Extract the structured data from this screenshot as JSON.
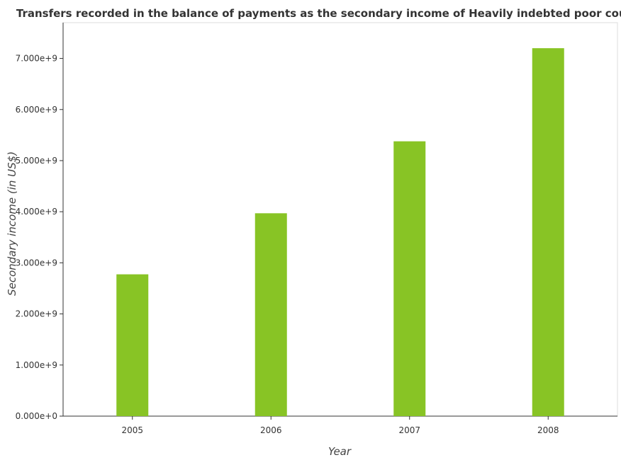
{
  "chart_data": {
    "type": "bar",
    "title": "Transfers recorded in the balance of payments as the secondary income of Heavily indebted poor countries",
    "xlabel": "Year",
    "ylabel": "Secondary income (in US$)",
    "categories": [
      "2005",
      "2006",
      "2007",
      "2008"
    ],
    "series": [
      {
        "values": [
          2775000000,
          3970000000,
          5378000000,
          7200000000
        ]
      }
    ],
    "ylim": [
      0,
      7700000000
    ],
    "yticks": [
      0,
      1000000000,
      2000000000,
      3000000000,
      4000000000,
      5000000000,
      6000000000,
      7000000000
    ],
    "ytick_labels": [
      "0.000e+0",
      "1.000e+9",
      "2.000e+9",
      "3.000e+9",
      "4.000e+9",
      "5.000e+9",
      "6.000e+9",
      "7.000e+9"
    ],
    "bar_color": "#88c425",
    "grid": false
  }
}
